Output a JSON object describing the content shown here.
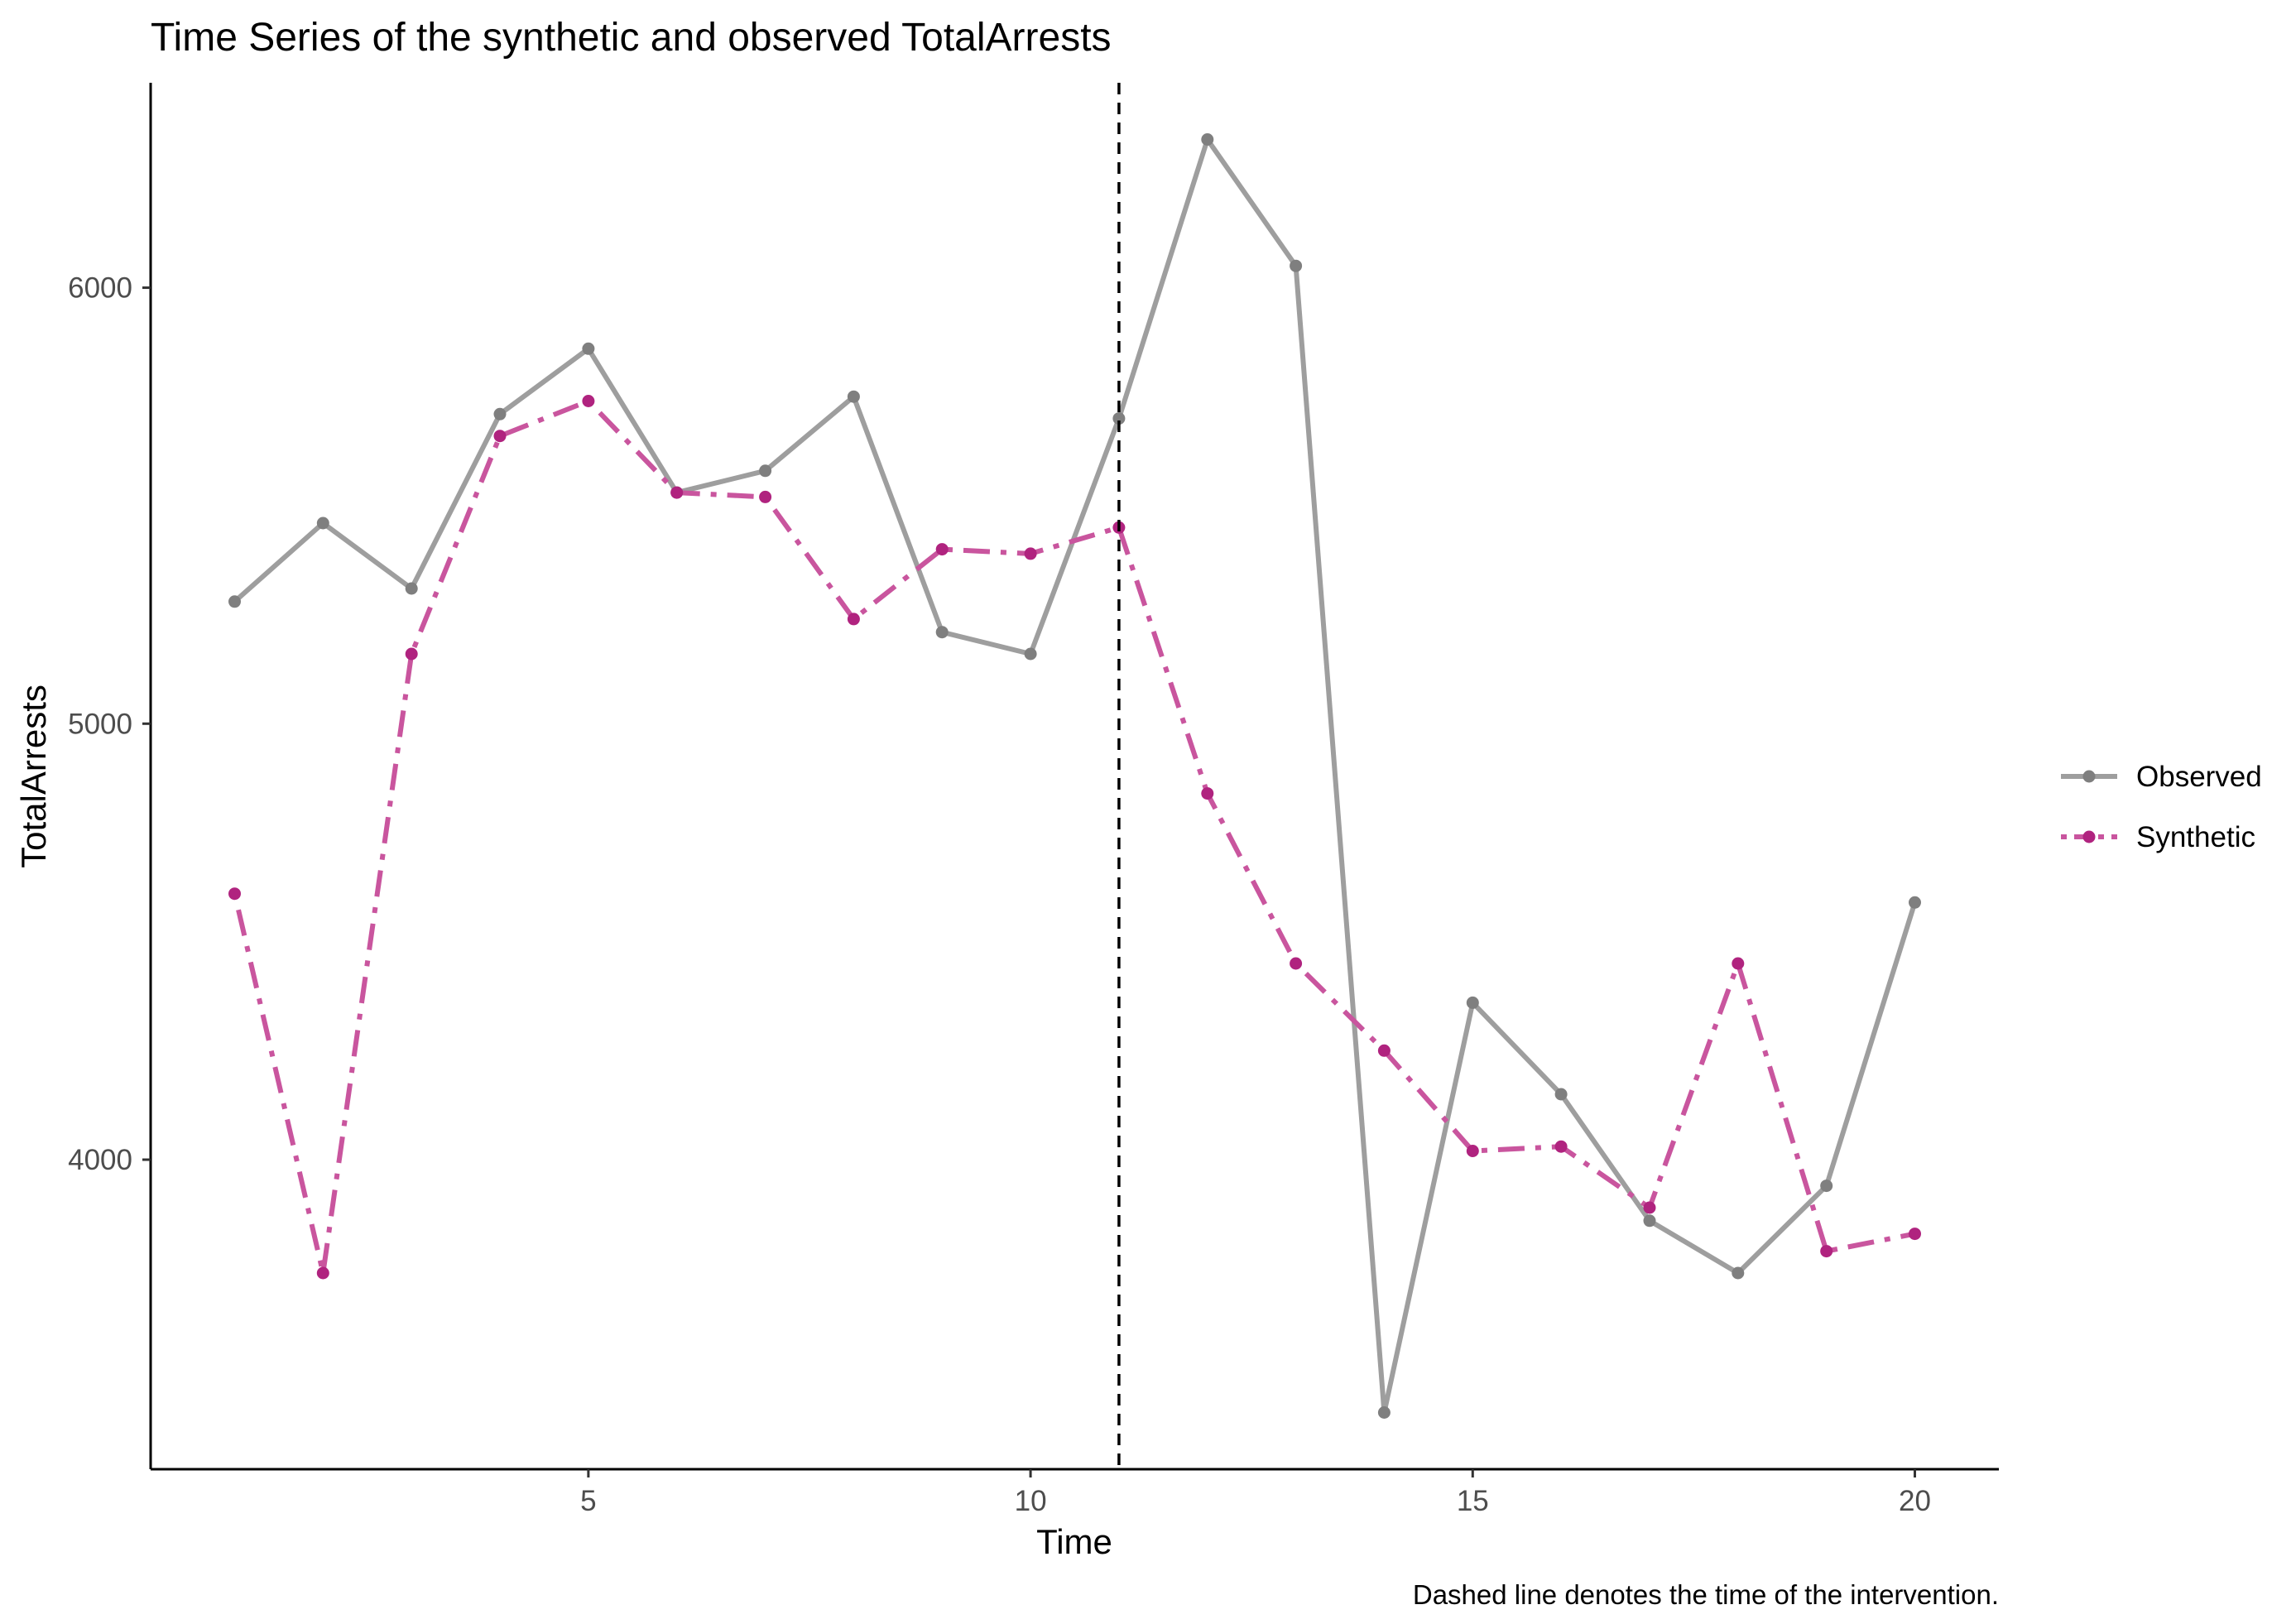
{
  "chart_data": {
    "type": "line",
    "title": "Time Series of the synthetic and observed TotalArrests",
    "xlabel": "Time",
    "ylabel": "TotalArrests",
    "caption": "Dashed line denotes the time of the intervention.",
    "xlim": [
      0.05,
      20.95
    ],
    "ylim": [
      3290,
      6470
    ],
    "x_ticks": [
      5,
      10,
      15,
      20
    ],
    "y_ticks": [
      4000,
      5000,
      6000
    ],
    "x_tick_labels": [
      "5",
      "10",
      "15",
      "20"
    ],
    "y_tick_labels": [
      "4000",
      "5000",
      "6000"
    ],
    "intervention_time": 11,
    "grid": false,
    "legend_position": "right",
    "x": [
      1,
      2,
      3,
      4,
      5,
      6,
      7,
      8,
      9,
      10,
      11,
      12,
      13,
      14,
      15,
      16,
      17,
      18,
      19,
      20
    ],
    "series": [
      {
        "name": "Observed",
        "color": "#9e9e9e",
        "point_color": "#7f7f7f",
        "line_style": "solid",
        "values": [
          5280,
          5460,
          5310,
          5710,
          5860,
          5530,
          5580,
          5750,
          5210,
          5160,
          5700,
          6340,
          6050,
          3420,
          4360,
          4150,
          3860,
          3740,
          3940,
          4590
        ]
      },
      {
        "name": "Synthetic",
        "color": "#c9559e",
        "point_color": "#b0237f",
        "line_style": "dotdash",
        "values": [
          4610,
          3740,
          5160,
          5660,
          5740,
          5530,
          5520,
          5240,
          5400,
          5390,
          5450,
          4840,
          4450,
          4250,
          4020,
          4030,
          3890,
          4450,
          3790,
          3830
        ]
      }
    ]
  }
}
